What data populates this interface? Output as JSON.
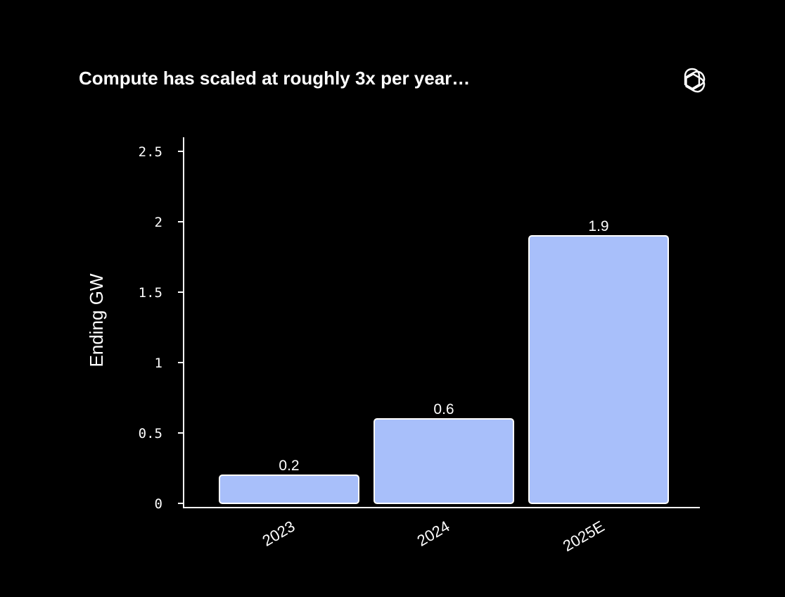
{
  "logo_icon": "openai-logo-icon",
  "chart_data": {
    "type": "bar",
    "title": "Compute has scaled at roughly 3x per year…",
    "xlabel": "",
    "ylabel": "Ending GW",
    "categories": [
      "2023",
      "2024",
      "2025E"
    ],
    "values": [
      0.2,
      0.6,
      1.9
    ],
    "data_labels": [
      "0.2",
      "0.6",
      "1.9"
    ],
    "yticks": [
      0,
      0.5,
      1,
      1.5,
      2,
      2.5
    ],
    "ytick_labels": [
      "0",
      "0.5",
      "1",
      "1.5",
      "2",
      "2.5"
    ],
    "ylim": [
      0,
      2.6
    ],
    "grid": false,
    "colors": {
      "background": "#000000",
      "bar_fill": "#a8bffa",
      "bar_stroke": "#ffffff",
      "axis": "#ffffff",
      "text": "#ffffff"
    }
  }
}
